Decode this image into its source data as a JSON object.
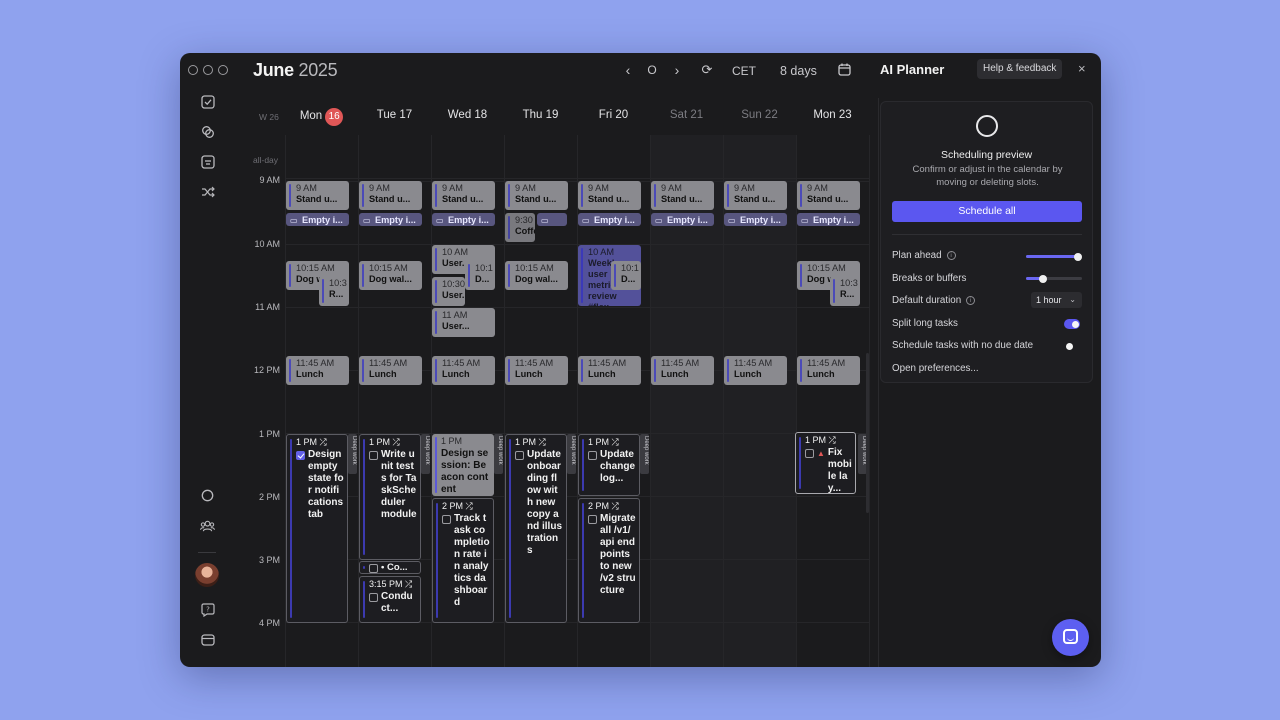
{
  "header": {
    "month": "June",
    "year": "2025",
    "nav_today": "O",
    "timezone": "CET",
    "view": "8 days"
  },
  "calendar": {
    "week_label": "W 26",
    "allday_label": "all-day",
    "days": [
      {
        "label": "Mon",
        "badge": "16"
      },
      {
        "label": "Tue 17"
      },
      {
        "label": "Wed 18"
      },
      {
        "label": "Thu 19"
      },
      {
        "label": "Fri 20"
      },
      {
        "label": "Sat 21"
      },
      {
        "label": "Sun 22"
      },
      {
        "label": "Mon 23"
      }
    ],
    "times": [
      "9 AM",
      "10 AM",
      "11 AM",
      "12 PM",
      "1 PM",
      "2 PM",
      "3 PM",
      "4 PM"
    ],
    "deep_work_label": "Deep work",
    "events": {
      "standup_time": "9 AM",
      "standup_name": "Stand u...",
      "empty_name": "Empty i...",
      "coffee_time": "9:30",
      "coffee_name": "Coffee ...",
      "dog_time": "10:15 AM",
      "dog_name_short": "Dog w",
      "dog_name": "Dog wal...",
      "r_time": "10:3",
      "r_name": "R...",
      "d_time": "10:1",
      "d_name": "D...",
      "user_time1": "10 AM",
      "user_name1": "User...",
      "user_time2": "10:30",
      "user_name2": "User...",
      "user_time3": "11 AM",
      "user_name3": "User...",
      "weekly_time": "10 AM",
      "weekly_name": "Weekly user metrics review #flex",
      "lunch_time": "11:45 AM",
      "lunch_name": "Lunch"
    },
    "tasks": {
      "mon_time": "1 PM",
      "mon_name": "Design empty state for notifications tab",
      "tue_time": "1 PM",
      "tue_name": "Write unit tests for TaskScheduler module",
      "tue_mid_name": "• Co...",
      "tue_late_time": "3:15 PM",
      "tue_late_name": "Conduct...",
      "wed_time": "1 PM",
      "wed_name": "Design session: Beacon content",
      "wed_late_time": "2 PM",
      "wed_late_name": "Track task completion rate in analytics dashboard",
      "thu_time": "1 PM",
      "thu_name": "Update onboarding flow with new copy and illustrations",
      "fri_time": "1 PM",
      "fri_name": "Update changelog...",
      "fri_late_time": "2 PM",
      "fri_late_name": "Migrate all /v1/api endpoints to new /v2 structure",
      "mon23_time": "1 PM",
      "mon23_name": "Fix mobile lay..."
    }
  },
  "planner": {
    "title": "AI Planner",
    "help_label": "Help & feedback",
    "close": "×",
    "preview_title": "Scheduling preview",
    "preview_sub": "Confirm or adjust in the calendar by moving or deleting slots.",
    "schedule_all": "Schedule all",
    "plan_ahead": "Plan ahead",
    "breaks": "Breaks or buffers",
    "default_duration": "Default duration",
    "duration_value": "1 hour",
    "split_long": "Split long tasks",
    "no_due": "Schedule tasks with no due date",
    "open_prefs": "Open preferences...",
    "plan_ahead_level": 1.0,
    "breaks_level": 0.28,
    "split_long_on": true,
    "no_due_on": false,
    "accent": "#5b57f0"
  }
}
